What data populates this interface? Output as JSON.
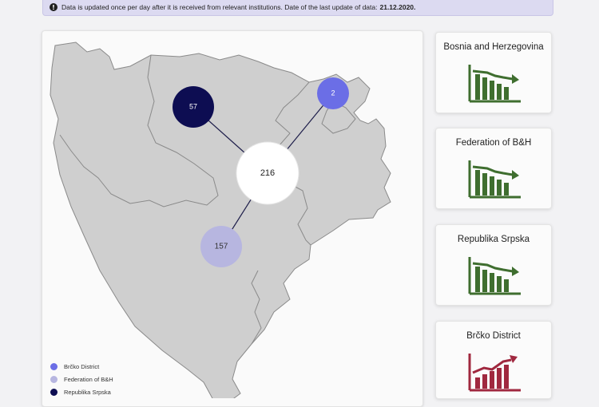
{
  "banner": {
    "icon": "info-icon",
    "text": "Data is updated once per day after it is received from relevant institutions. Date of the last update of data:",
    "date": "21.12.2020."
  },
  "map": {
    "bubbles": [
      {
        "id": "total",
        "value": "216",
        "color": "#ffffff",
        "text_color": "#222222"
      },
      {
        "id": "republika-srpska",
        "value": "57",
        "color": "#0d0d52",
        "text_color": "#ffffff"
      },
      {
        "id": "brcko",
        "value": "2",
        "color": "#6b6ee6",
        "text_color": "#ffffff"
      },
      {
        "id": "federation",
        "value": "157",
        "color": "#b7b6e0",
        "text_color": "#333333"
      }
    ],
    "legend": [
      {
        "label": "Brčko District",
        "color": "#6b6ee6"
      },
      {
        "label": "Federation of B&H",
        "color": "#b7b6e0"
      },
      {
        "label": "Republika Srpska",
        "color": "#0d0d52"
      }
    ]
  },
  "cards": [
    {
      "title": "Bosnia and Herzegovina",
      "trend": "down",
      "icon": "chart-trend-down-icon",
      "color": "#3f6e2f"
    },
    {
      "title": "Federation of B&H",
      "trend": "down",
      "icon": "chart-trend-down-icon",
      "color": "#3f6e2f"
    },
    {
      "title": "Republika Srpska",
      "trend": "down",
      "icon": "chart-trend-down-icon",
      "color": "#3f6e2f"
    },
    {
      "title": "Brčko District",
      "trend": "up",
      "icon": "chart-trend-up-icon",
      "color": "#a0283f"
    }
  ]
}
